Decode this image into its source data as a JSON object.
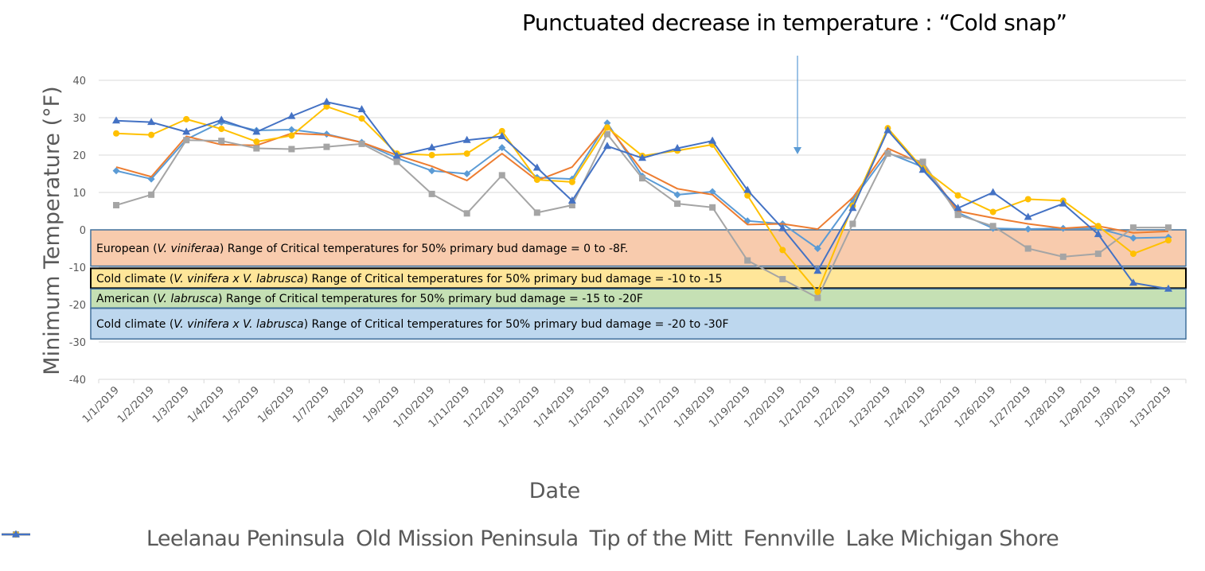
{
  "annotation": {
    "title": "Punctuated decrease in temperature : “Cold snap”",
    "arrow_at_date": "1/20/2019",
    "arrow_color": "#5b9bd5"
  },
  "bands": [
    {
      "label_parts": [
        "European (",
        "V. viniferaa",
        ") Range of Critical temperatures for 50% primary bud damage = 0 to -8F."
      ],
      "from": 0,
      "to": -9.7,
      "fill": "#f8cbad",
      "stroke": "#41719c"
    },
    {
      "label_parts": [
        "Cold climate (",
        "V. vinifera x V. labrusca",
        ") Range of Critical temperatures for 50% primary bud damage = -10 to -15"
      ],
      "from": -10.3,
      "to": -15.6,
      "fill": "#ffe699",
      "stroke": "#000000"
    },
    {
      "label_parts": [
        "American (",
        "V. labrusca",
        ") Range of Critical temperatures for 50% primary bud damage = -15 to -20F"
      ],
      "from": -15.8,
      "to": -20.9,
      "fill": "#c5e0b4",
      "stroke": "#41719c"
    },
    {
      "label_parts": [
        "Cold climate (",
        "V. vinifera x V. labrusca",
        ") Range of Critical temperatures for 50% primary bud damage = -20 to -30F"
      ],
      "from": -21.0,
      "to": -29.2,
      "fill": "#bdd7ee",
      "stroke": "#41719c"
    }
  ],
  "chart_data": {
    "type": "line",
    "title": "",
    "xlabel": "Date",
    "ylabel": "Minimum Temperature (°F)",
    "ylim": [
      -40,
      40
    ],
    "yticks": [
      40,
      30,
      20,
      10,
      0,
      -10,
      -20,
      -30,
      -40
    ],
    "grid": true,
    "legend_position": "bottom",
    "categories": [
      "1/1/2019",
      "1/2/2019",
      "1/3/2019",
      "1/4/2019",
      "1/5/2019",
      "1/6/2019",
      "1/7/2019",
      "1/8/2019",
      "1/9/2019",
      "1/10/2019",
      "1/11/2019",
      "1/12/2019",
      "1/13/2019",
      "1/14/2019",
      "1/15/2019",
      "1/16/2019",
      "1/17/2019",
      "1/18/2019",
      "1/19/2019",
      "1/20/2019",
      "1/21/2019",
      "1/22/2019",
      "1/23/2019",
      "1/24/2019",
      "1/25/2019",
      "1/26/2019",
      "1/27/2019",
      "1/28/2019",
      "1/29/2019",
      "1/30/2019",
      "1/31/2019"
    ],
    "series": [
      {
        "name": "Leelanau Peninsula",
        "color": "#5b9bd5",
        "marker": "diamond",
        "values": [
          15.8,
          13.6,
          24.2,
          28.8,
          26.6,
          26.8,
          25.6,
          23.4,
          19.2,
          15.8,
          15.0,
          22.0,
          14.0,
          13.6,
          28.6,
          14.4,
          9.4,
          10.2,
          2.4,
          1.6,
          -5.0,
          8.0,
          20.6,
          16.8,
          4.6,
          0.4,
          0.2,
          0.4,
          0.4,
          -2.2,
          -2.0
        ]
      },
      {
        "name": "Old Mission Peninsula",
        "color": "#ed7d31",
        "marker": "none",
        "values": [
          16.8,
          14.2,
          25.0,
          22.8,
          22.6,
          25.8,
          25.4,
          23.4,
          20.0,
          17.0,
          13.2,
          20.4,
          13.2,
          16.8,
          28.0,
          15.8,
          11.0,
          9.4,
          1.4,
          1.6,
          0.2,
          8.6,
          21.8,
          17.6,
          5.0,
          3.2,
          1.6,
          0.4,
          1.0,
          -0.8,
          -0.4
        ]
      },
      {
        "name": "Tip of the Mitt",
        "color": "#a5a5a5",
        "marker": "square",
        "values": [
          6.6,
          9.4,
          24.0,
          23.8,
          21.8,
          21.6,
          22.2,
          23.0,
          18.2,
          9.6,
          4.4,
          14.6,
          4.6,
          6.6,
          25.6,
          13.8,
          7.0,
          6.0,
          -8.2,
          -13.2,
          -18.2,
          1.6,
          20.4,
          18.2,
          4.0,
          1.0,
          -5.0,
          -7.2,
          -6.4,
          0.6,
          0.6
        ]
      },
      {
        "name": "Fennville",
        "color": "#ffc000",
        "marker": "circle",
        "values": [
          25.8,
          25.4,
          29.6,
          27.0,
          23.6,
          25.2,
          33.0,
          29.8,
          20.4,
          20.0,
          20.4,
          26.4,
          13.4,
          12.8,
          27.4,
          19.8,
          21.2,
          22.8,
          9.2,
          -5.4,
          -16.6,
          6.4,
          27.2,
          16.4,
          9.2,
          4.8,
          8.2,
          7.8,
          1.0,
          -6.4,
          -2.8
        ]
      },
      {
        "name": "Lake Michigan Shore",
        "color": "#4472c4",
        "marker": "triangle",
        "values": [
          29.2,
          28.8,
          26.2,
          29.4,
          26.2,
          30.4,
          34.2,
          32.2,
          19.8,
          22.0,
          24.0,
          25.0,
          16.6,
          7.8,
          22.4,
          19.2,
          21.8,
          23.8,
          10.6,
          0.4,
          -11.0,
          5.8,
          26.6,
          16.0,
          5.8,
          10.0,
          3.4,
          7.0,
          -1.2,
          -14.2,
          -15.8
        ]
      }
    ]
  }
}
